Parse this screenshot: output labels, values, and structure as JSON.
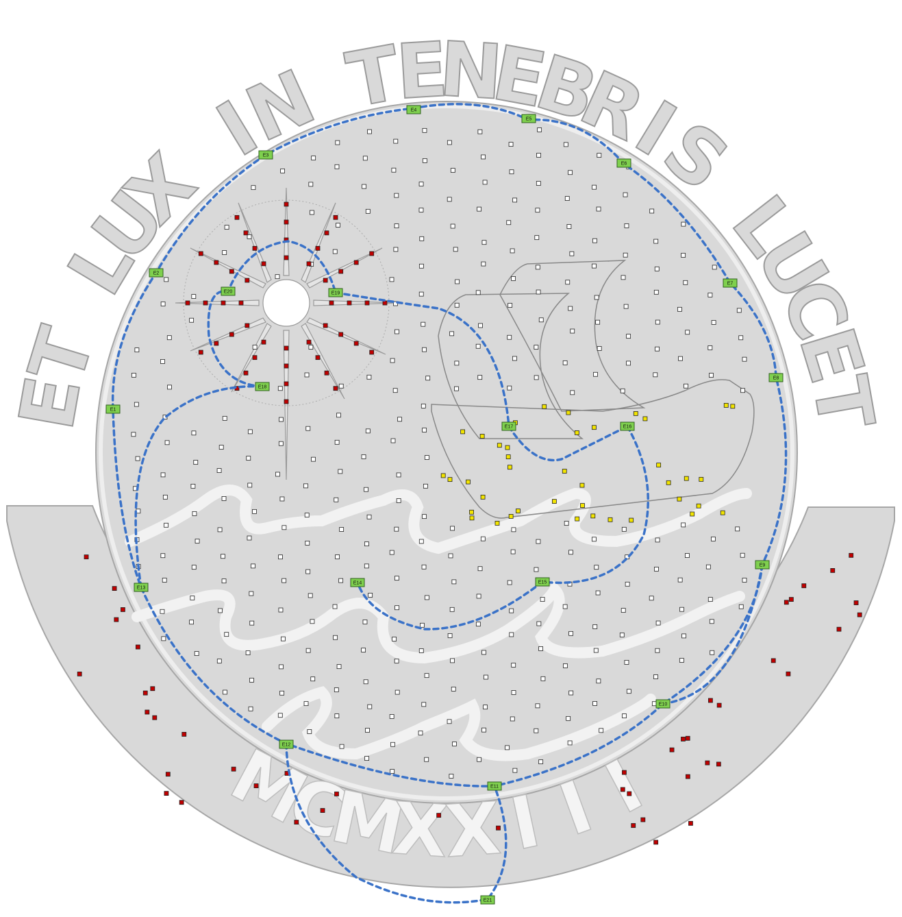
{
  "motto": {
    "top_words": [
      "ET",
      "LUX",
      "IN",
      "TENEBRIS",
      "LUCET"
    ]
  },
  "date_stencil": {
    "text": "MCMXXIII"
  },
  "nodes": [
    "E1",
    "E2",
    "E3",
    "E4",
    "E5",
    "E6",
    "E7",
    "E8",
    "E9",
    "E10",
    "E11",
    "E12",
    "E13",
    "E14",
    "E15",
    "E16",
    "E17",
    "E18",
    "E19",
    "E20",
    "E21"
  ],
  "colors": {
    "plate": "#d9d9d9",
    "plate_stroke": "#a6a6a6",
    "node_fill": "#7fd04e",
    "node_stroke": "#2f5f1f",
    "route": "#3a72c8",
    "red_pixel": "#c00000",
    "yellow_pixel": "#f2e400",
    "white_pixel": "#ffffff",
    "wave_white": "#f2f2f2"
  }
}
